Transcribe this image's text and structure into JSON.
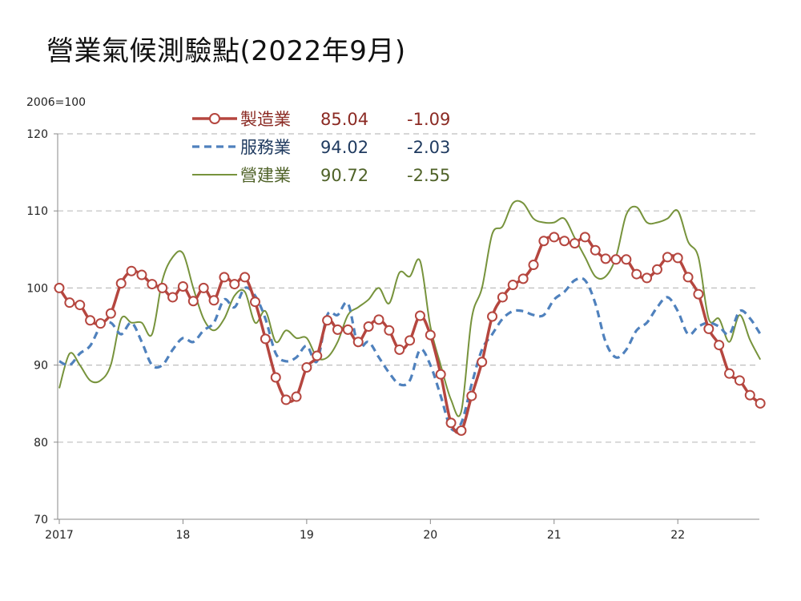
{
  "title": "營業氣候測驗點(2022年9月)",
  "chart_data": {
    "type": "line",
    "unit_label": "2006=100",
    "ylim": [
      70,
      120
    ],
    "y_ticks": [
      70,
      80,
      90,
      100,
      110,
      120
    ],
    "x_tick_labels": [
      "2017",
      "18",
      "19",
      "20",
      "21",
      "22"
    ],
    "x_start": "2017-01",
    "x_end": "2022-09",
    "grid": true,
    "legend_position": "top",
    "series": [
      {
        "name": "製造業",
        "latest": "85.04",
        "change": "-1.09",
        "color": "#b5463f",
        "text_color": "#8b2a23",
        "style": "solid-markers",
        "values": [
          100.0,
          98.1,
          97.8,
          95.8,
          95.4,
          96.7,
          100.6,
          102.2,
          101.7,
          100.5,
          100.0,
          98.8,
          100.2,
          98.3,
          100.0,
          98.4,
          101.4,
          100.5,
          101.4,
          98.2,
          93.4,
          88.4,
          85.5,
          85.9,
          89.7,
          91.2,
          95.8,
          94.6,
          94.6,
          93.0,
          95.0,
          95.9,
          94.5,
          92.0,
          93.2,
          96.4,
          93.9,
          88.8,
          82.5,
          81.5,
          86.0,
          90.4,
          96.3,
          98.8,
          100.4,
          101.2,
          103.0,
          106.1,
          106.6,
          106.1,
          105.8,
          106.6,
          104.9,
          103.8,
          103.7,
          103.7,
          101.8,
          101.3,
          102.4,
          104.0,
          103.9,
          101.4,
          99.2,
          94.7,
          92.6,
          88.9,
          88.0,
          86.1,
          85.04
        ]
      },
      {
        "name": "服務業",
        "latest": "94.02",
        "change": "-2.03",
        "color": "#4f81bd",
        "text_color": "#1f3a5f",
        "style": "dashed",
        "values": [
          90.5,
          90.0,
          91.5,
          92.5,
          95.0,
          95.5,
          94.0,
          95.5,
          93.0,
          90.0,
          90.0,
          92.0,
          93.5,
          93.0,
          94.5,
          95.5,
          98.5,
          97.5,
          100.0,
          99.0,
          96.0,
          91.5,
          90.5,
          91.0,
          92.5,
          90.5,
          96.5,
          96.5,
          98.0,
          92.5,
          93.0,
          91.0,
          89.0,
          87.5,
          88.0,
          92.0,
          90.0,
          86.0,
          81.8,
          82.5,
          87.5,
          92.0,
          94.0,
          96.0,
          97.0,
          97.0,
          96.5,
          96.5,
          98.5,
          99.5,
          101.0,
          101.0,
          98.0,
          93.0,
          91.0,
          92.0,
          94.5,
          95.5,
          97.5,
          98.8,
          97.0,
          94.0,
          95.0,
          95.5,
          95.0,
          94.0,
          97.0,
          96.06,
          94.02
        ]
      },
      {
        "name": "營建業",
        "latest": "90.72",
        "change": "-2.55",
        "color": "#77933c",
        "text_color": "#4f6228",
        "style": "thin",
        "values": [
          87.0,
          91.5,
          90.0,
          88.0,
          88.0,
          90.0,
          96.0,
          95.5,
          95.5,
          94.0,
          101.0,
          104.0,
          104.5,
          100.0,
          96.0,
          94.5,
          96.0,
          99.0,
          99.5,
          95.5,
          97.0,
          93.0,
          94.5,
          93.5,
          93.5,
          91.0,
          91.0,
          93.0,
          96.5,
          97.5,
          98.5,
          100.0,
          98.0,
          102.0,
          101.5,
          103.5,
          95.0,
          90.0,
          85.5,
          84.0,
          96.0,
          100.0,
          107.0,
          108.0,
          111.0,
          111.0,
          109.0,
          108.5,
          108.5,
          109.0,
          106.5,
          104.0,
          101.5,
          101.5,
          104.0,
          109.5,
          110.5,
          108.5,
          108.5,
          109.0,
          110.0,
          106.0,
          104.0,
          96.0,
          96.0,
          93.0,
          96.5,
          93.27,
          90.72
        ]
      }
    ]
  }
}
